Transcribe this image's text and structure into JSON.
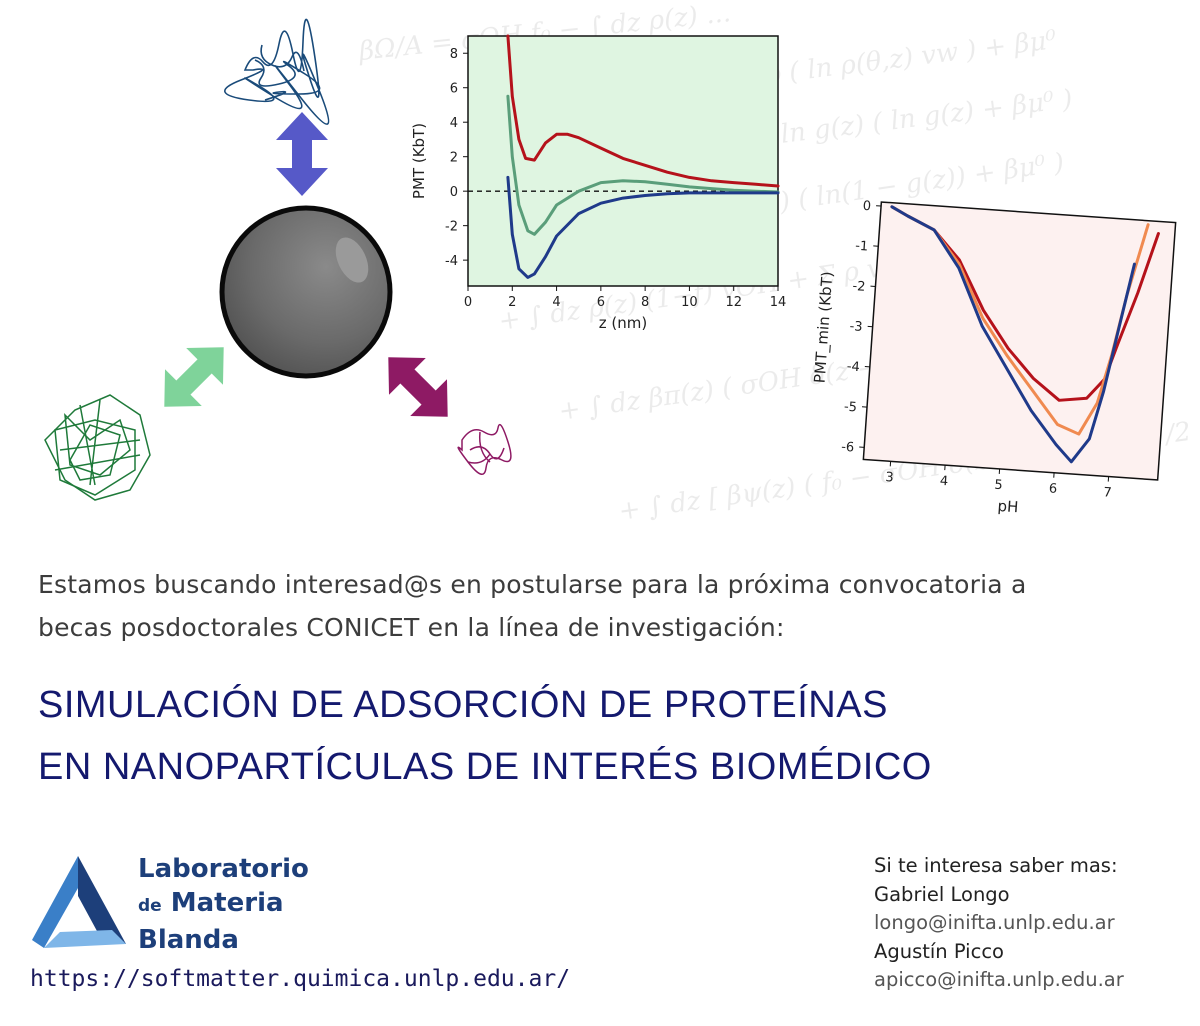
{
  "chart_data": [
    {
      "type": "line",
      "xlabel": "z (nm)",
      "ylabel": "PMT (KbT)",
      "xlim": [
        0,
        14
      ],
      "ylim": [
        -5.5,
        9
      ],
      "xticks": [
        0,
        2,
        4,
        6,
        8,
        10,
        12,
        14
      ],
      "yticks": [
        -4,
        -2,
        0,
        2,
        4,
        6,
        8
      ],
      "background": "#dff5e1",
      "reference_line": 0,
      "series": [
        {
          "color": "#b5121b",
          "x": [
            1.8,
            2.0,
            2.3,
            2.6,
            3.0,
            3.5,
            4.0,
            4.5,
            5.0,
            6.0,
            7.0,
            8.0,
            9.0,
            10.0,
            11.0,
            12.0,
            13.0,
            14.0
          ],
          "y": [
            9.0,
            5.5,
            3.0,
            1.9,
            1.8,
            2.8,
            3.3,
            3.3,
            3.1,
            2.5,
            1.9,
            1.5,
            1.1,
            0.8,
            0.6,
            0.5,
            0.4,
            0.3
          ]
        },
        {
          "color": "#5a9e7a",
          "x": [
            1.8,
            2.0,
            2.3,
            2.7,
            3.0,
            3.5,
            4.0,
            5.0,
            6.0,
            7.0,
            8.0,
            9.0,
            10.0,
            11.0,
            12.0,
            13.0,
            14.0
          ],
          "y": [
            5.5,
            2.0,
            -0.8,
            -2.3,
            -2.5,
            -1.8,
            -0.8,
            0.0,
            0.5,
            0.6,
            0.55,
            0.4,
            0.25,
            0.15,
            0.05,
            0.0,
            -0.05
          ]
        },
        {
          "color": "#1f3a8a",
          "x": [
            1.8,
            2.0,
            2.3,
            2.7,
            3.0,
            3.5,
            4.0,
            5.0,
            6.0,
            7.0,
            8.0,
            9.0,
            10.0,
            11.0,
            12.0,
            13.0,
            14.0
          ],
          "y": [
            0.8,
            -2.5,
            -4.5,
            -5.0,
            -4.8,
            -3.8,
            -2.6,
            -1.3,
            -0.7,
            -0.4,
            -0.25,
            -0.15,
            -0.1,
            -0.1,
            -0.1,
            -0.1,
            -0.1
          ]
        }
      ]
    },
    {
      "type": "line",
      "xlabel": "pH",
      "ylabel": "PMT_min (KbT)",
      "xlim": [
        2.5,
        7.9
      ],
      "ylim": [
        -6.3,
        0.1
      ],
      "xticks": [
        3,
        4,
        5,
        6,
        7
      ],
      "yticks": [
        0,
        -1,
        -2,
        -3,
        -4,
        -5,
        -6
      ],
      "background": "#fdf1f0",
      "series": [
        {
          "color": "#b5121b",
          "x": [
            2.7,
            3.0,
            3.5,
            4.0,
            4.5,
            5.0,
            5.5,
            6.0,
            6.5,
            6.8,
            7.0,
            7.3,
            7.6
          ],
          "y": [
            0.0,
            -0.2,
            -0.5,
            -1.2,
            -2.4,
            -3.3,
            -4.0,
            -4.5,
            -4.4,
            -3.9,
            -3.0,
            -1.7,
            -0.2
          ]
        },
        {
          "color": "#f08a50",
          "x": [
            2.7,
            3.0,
            3.5,
            4.0,
            4.5,
            5.0,
            5.5,
            6.0,
            6.4,
            6.7,
            6.9,
            7.1,
            7.4
          ],
          "y": [
            0.0,
            -0.2,
            -0.5,
            -1.3,
            -2.6,
            -3.5,
            -4.3,
            -5.1,
            -5.3,
            -4.5,
            -3.3,
            -1.8,
            0.0
          ]
        },
        {
          "color": "#1f3a8a",
          "x": [
            2.7,
            3.0,
            3.5,
            4.0,
            4.5,
            5.0,
            5.5,
            6.0,
            6.3,
            6.6,
            6.8,
            7.0,
            7.2
          ],
          "y": [
            0.0,
            -0.2,
            -0.5,
            -1.4,
            -2.8,
            -3.8,
            -4.8,
            -5.6,
            -6.0,
            -5.4,
            -4.2,
            -2.6,
            -1.0
          ]
        }
      ]
    }
  ],
  "intro": {
    "line1": "Estamos buscando interesad@s en postularse para la próxima convocatoria a",
    "line2": "becas posdoctorales CONICET en la línea de investigación:"
  },
  "title": {
    "line1": "SIMULACIÓN DE ADSORCIÓN DE PROTEÍNAS",
    "line2": "EN NANOPARTÍCULAS DE INTERÉS BIOMÉDICO"
  },
  "lab": {
    "line1": "Laboratorio",
    "line2_small": "de",
    "line2": "Materia",
    "line3": "Blanda",
    "logo_colors": [
      "#1d3f7a",
      "#3a7fc8",
      "#7fb6e8"
    ]
  },
  "url": "https://softmatter.quimica.unlp.edu.ar/",
  "contact": {
    "heading": "Si te interesa saber mas:",
    "name1": "Gabriel Longo",
    "email1": "longo@inifta.unlp.edu.ar",
    "name2": "Agustín Picco",
    "email2": "apicco@inifta.unlp.edu.ar"
  },
  "colors": {
    "title": "#14196e",
    "arrow_top": "#5659c8",
    "arrow_left": "#7fd39a",
    "arrow_right": "#8e1a64",
    "nanoparticle": "#6b6b6b"
  }
}
